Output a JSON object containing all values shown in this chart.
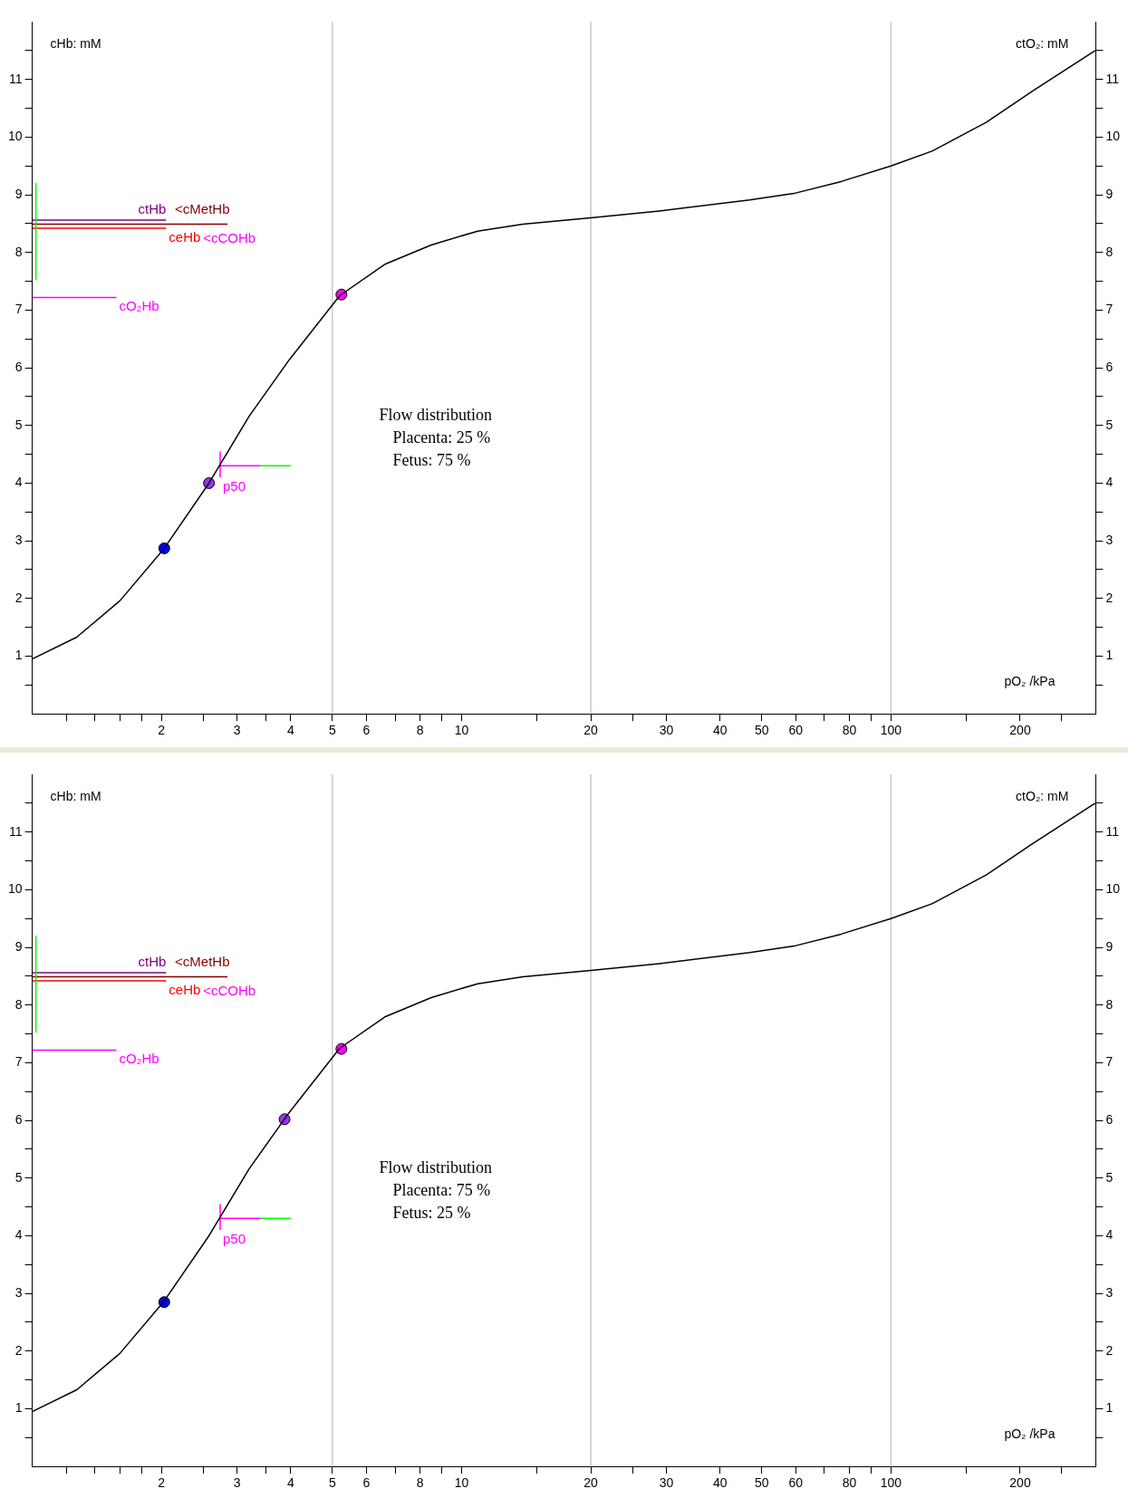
{
  "chart_data": [
    {
      "type": "line",
      "ylabel": "cHb: mM",
      "y2label": "ctO₂: mM",
      "xlabel": "pO₂ /kPa",
      "log": "x",
      "grid": false,
      "legend": false,
      "xlim": [
        1,
        300
      ],
      "xticks": [
        {
          "value": 1.2,
          "label": null
        },
        {
          "value": 1.4,
          "label": null
        },
        {
          "value": 1.6,
          "label": null
        },
        {
          "value": 1.8,
          "label": null
        },
        2,
        {
          "value": 2.5,
          "label": null
        },
        3,
        {
          "value": 3.5,
          "label": null
        },
        4,
        5,
        6,
        {
          "value": 7,
          "label": null
        },
        8,
        {
          "value": 9,
          "label": null
        },
        10,
        {
          "value": 15,
          "label": null
        },
        20,
        {
          "value": 25,
          "label": null
        },
        30,
        40,
        50,
        60,
        {
          "value": 70,
          "label": null
        },
        80,
        {
          "value": 90,
          "label": null
        },
        100,
        {
          "value": 150,
          "label": null
        },
        200,
        {
          "value": 250,
          "label": null
        }
      ],
      "ylim": [
        0,
        12
      ],
      "yticks": [
        {
          "value": 0.5,
          "label": null
        },
        1,
        {
          "value": 1.5,
          "label": null
        },
        2,
        {
          "value": 2.5,
          "label": null
        },
        3,
        {
          "value": 3.5,
          "label": null
        },
        4,
        {
          "value": 4.5,
          "label": null
        },
        5,
        {
          "value": 5.5,
          "label": null
        },
        6,
        {
          "value": 6.5,
          "label": null
        },
        7,
        {
          "value": 7.5,
          "label": null
        },
        8,
        {
          "value": 8.5,
          "label": null
        },
        9,
        {
          "value": 9.5,
          "label": null
        },
        10,
        {
          "value": 10.5,
          "label": null
        },
        11,
        {
          "value": 11.5,
          "label": null
        }
      ],
      "y2lim": [
        0,
        12
      ],
      "y2ticks": [
        {
          "value": 0.5,
          "label": null
        },
        1,
        {
          "value": 1.5,
          "label": null
        },
        2,
        {
          "value": 2.5,
          "label": null
        },
        3,
        {
          "value": 3.5,
          "label": null
        },
        4,
        {
          "value": 4.5,
          "label": null
        },
        5,
        {
          "value": 5.5,
          "label": null
        },
        6,
        {
          "value": 6.5,
          "label": null
        },
        7,
        {
          "value": 7.5,
          "label": null
        },
        8,
        {
          "value": 8.5,
          "label": null
        },
        9,
        {
          "value": 9.5,
          "label": null
        },
        10,
        {
          "value": 10.5,
          "label": null
        },
        11,
        {
          "value": 11.5,
          "label": null
        }
      ],
      "ref_lines": [
        {
          "axis": "x",
          "value": 5,
          "color": "#c8c8c8"
        },
        {
          "axis": "x",
          "value": 20,
          "color": "#c8c8c8"
        },
        {
          "axis": "x",
          "value": 100,
          "color": "#c8c8c8"
        }
      ],
      "series": [
        {
          "marker": "none",
          "color": "#000000",
          "x": [
            1,
            1.27,
            1.6,
            2.03,
            2.58,
            3.2,
            3.97,
            5.2,
            6.65,
            8.5,
            10.9,
            13.9,
            20,
            28.9,
            46.9,
            60,
            76.6,
            100,
            125,
            167,
            214,
            299
          ],
          "values": [
            0.95,
            1.33,
            1.96,
            2.87,
            4.0,
            5.16,
            6.14,
            7.25,
            7.8,
            8.13,
            8.37,
            8.49,
            8.6,
            8.72,
            8.91,
            9.03,
            9.23,
            9.5,
            9.76,
            10.26,
            10.8,
            11.5
          ]
        },
        {
          "marker": "none",
          "color": "#00ff00",
          "x": [
            1.02,
            1.02
          ],
          "values": [
            7.52,
            9.2
          ]
        },
        {
          "marker": "none",
          "color": "#800000",
          "x": [
            1,
            2.85
          ],
          "values": [
            8.49,
            8.49
          ]
        },
        {
          "marker": "none",
          "color": "#800080",
          "x": [
            1,
            2.05
          ],
          "values": [
            8.56,
            8.56
          ]
        },
        {
          "marker": "none",
          "color": "#ff0000",
          "x": [
            1,
            2.05
          ],
          "values": [
            8.42,
            8.42
          ]
        },
        {
          "marker": "none",
          "color": "#ff00ff",
          "x": [
            1,
            1.57
          ],
          "values": [
            7.22,
            7.22
          ]
        },
        {
          "marker": "none",
          "color": "#ff00ff",
          "x": [
            2.74,
            2.74
          ],
          "values": [
            4.1,
            4.55
          ]
        },
        {
          "marker": "none",
          "color": "#ff00ff",
          "x": [
            2.74,
            3.4
          ],
          "values": [
            4.3,
            4.3
          ]
        },
        {
          "marker": "none",
          "color": "#00ff00",
          "x": [
            3.4,
            4.0
          ],
          "values": [
            4.3,
            4.3
          ]
        },
        {
          "type": "scatter",
          "marker": "circle",
          "x": [
            2.03,
            2.58,
            5.25
          ],
          "values": [
            2.87,
            4.0,
            7.27
          ],
          "colors": [
            "#0000ff",
            "#9933ff",
            "#ff00ff"
          ]
        }
      ],
      "annotations": [
        "ctHb",
        "<cMetHb",
        "<cCOHb",
        {
          "text": "ceHb",
          "x": 2.05,
          "y": 8.42
        },
        {
          "text": "cO₂Hb",
          "x": 1.57,
          "y": 7.22
        },
        {
          "text": "p50",
          "x": 2.74,
          "y": 4.1
        },
        "Flow distribution",
        "Placenta: 25 %",
        "Fetus: 75 %"
      ]
    },
    {
      "type": "line",
      "ylabel": "cHb: mM",
      "y2label": "ctO₂: mM",
      "xlabel": "pO₂ /kPa",
      "log": "x",
      "grid": false,
      "legend": false,
      "xlim": [
        1,
        300
      ],
      "xticks": [
        {
          "value": 1.2,
          "label": null
        },
        {
          "value": 1.4,
          "label": null
        },
        {
          "value": 1.6,
          "label": null
        },
        {
          "value": 1.8,
          "label": null
        },
        2,
        {
          "value": 2.5,
          "label": null
        },
        3,
        {
          "value": 3.5,
          "label": null
        },
        4,
        5,
        6,
        {
          "value": 7,
          "label": null
        },
        8,
        {
          "value": 9,
          "label": null
        },
        10,
        {
          "value": 15,
          "label": null
        },
        20,
        {
          "value": 25,
          "label": null
        },
        30,
        40,
        50,
        60,
        {
          "value": 70,
          "label": null
        },
        80,
        {
          "value": 90,
          "label": null
        },
        100,
        {
          "value": 150,
          "label": null
        },
        200,
        {
          "value": 250,
          "label": null
        }
      ],
      "ylim": [
        0,
        12
      ],
      "yticks": [
        {
          "value": 0.5,
          "label": null
        },
        1,
        {
          "value": 1.5,
          "label": null
        },
        2,
        {
          "value": 2.5,
          "label": null
        },
        3,
        {
          "value": 3.5,
          "label": null
        },
        4,
        {
          "value": 4.5,
          "label": null
        },
        5,
        {
          "value": 5.5,
          "label": null
        },
        6,
        {
          "value": 6.5,
          "label": null
        },
        7,
        {
          "value": 7.5,
          "label": null
        },
        8,
        {
          "value": 8.5,
          "label": null
        },
        9,
        {
          "value": 9.5,
          "label": null
        },
        10,
        {
          "value": 10.5,
          "label": null
        },
        11,
        {
          "value": 11.5,
          "label": null
        }
      ],
      "y2lim": [
        0,
        12
      ],
      "y2ticks": [
        {
          "value": 0.5,
          "label": null
        },
        1,
        {
          "value": 1.5,
          "label": null
        },
        2,
        {
          "value": 2.5,
          "label": null
        },
        3,
        {
          "value": 3.5,
          "label": null
        },
        4,
        {
          "value": 4.5,
          "label": null
        },
        5,
        {
          "value": 5.5,
          "label": null
        },
        6,
        {
          "value": 6.5,
          "label": null
        },
        7,
        {
          "value": 7.5,
          "label": null
        },
        8,
        {
          "value": 8.5,
          "label": null
        },
        9,
        {
          "value": 9.5,
          "label": null
        },
        10,
        {
          "value": 10.5,
          "label": null
        },
        11,
        {
          "value": 11.5,
          "label": null
        }
      ],
      "ref_lines": [
        {
          "axis": "x",
          "value": 5,
          "color": "#c8c8c8"
        },
        {
          "axis": "x",
          "value": 20,
          "color": "#c8c8c8"
        },
        {
          "axis": "x",
          "value": 100,
          "color": "#c8c8c8"
        }
      ],
      "series": [
        {
          "marker": "none",
          "color": "#000000",
          "x": [
            1,
            1.27,
            1.6,
            2.03,
            2.58,
            3.2,
            3.97,
            5.2,
            6.65,
            8.5,
            10.9,
            13.9,
            20,
            28.9,
            46.9,
            60,
            76.6,
            100,
            125,
            167,
            214,
            299
          ],
          "values": [
            0.95,
            1.33,
            1.96,
            2.87,
            4.0,
            5.16,
            6.14,
            7.25,
            7.8,
            8.13,
            8.37,
            8.49,
            8.6,
            8.72,
            8.91,
            9.03,
            9.23,
            9.5,
            9.76,
            10.26,
            10.8,
            11.5
          ]
        },
        {
          "marker": "none",
          "color": "#00ff00",
          "x": [
            1.02,
            1.02
          ],
          "values": [
            7.52,
            9.2
          ]
        },
        {
          "marker": "none",
          "color": "#800000",
          "x": [
            1,
            2.85
          ],
          "values": [
            8.49,
            8.49
          ]
        },
        {
          "marker": "none",
          "color": "#800080",
          "x": [
            1,
            2.05
          ],
          "values": [
            8.56,
            8.56
          ]
        },
        {
          "marker": "none",
          "color": "#ff0000",
          "x": [
            1,
            2.05
          ],
          "values": [
            8.42,
            8.42
          ]
        },
        {
          "marker": "none",
          "color": "#ff00ff",
          "x": [
            1,
            1.57
          ],
          "values": [
            7.22,
            7.22
          ]
        },
        {
          "marker": "none",
          "color": "#ff00ff",
          "x": [
            2.74,
            2.74
          ],
          "values": [
            4.1,
            4.55
          ]
        },
        {
          "marker": "none",
          "color": "#ff00ff",
          "x": [
            2.74,
            3.4
          ],
          "values": [
            4.3,
            4.3
          ]
        },
        {
          "marker": "none",
          "color": "#00ff00",
          "x": [
            3.4,
            4.0
          ],
          "values": [
            4.3,
            4.3
          ]
        },
        {
          "type": "scatter",
          "marker": "circle",
          "x": [
            2.03,
            3.87,
            5.25
          ],
          "values": [
            2.85,
            6.02,
            7.24
          ],
          "colors": [
            "#0000ff",
            "#9933ff",
            "#ff00ff"
          ]
        }
      ],
      "annotations": [
        "ctHb",
        "<cMetHb",
        "<cCOHb",
        {
          "text": "ceHb",
          "x": 2.05,
          "y": 8.42
        },
        {
          "text": "cO₂Hb",
          "x": 1.57,
          "y": 7.22
        },
        {
          "text": "p50",
          "x": 2.74,
          "y": 4.1
        },
        "Flow distribution",
        "Placenta: 75 %",
        "Fetus: 25 %"
      ]
    }
  ]
}
